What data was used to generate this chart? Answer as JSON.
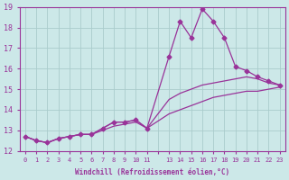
{
  "xlabel": "Windchill (Refroidissement éolien,°C)",
  "bg_color": "#cce8e8",
  "grid_color": "#aacccc",
  "line_color": "#993399",
  "x": [
    0,
    1,
    2,
    3,
    4,
    5,
    6,
    7,
    8,
    9,
    10,
    11,
    13,
    14,
    15,
    16,
    17,
    18,
    19,
    20,
    21,
    22,
    23
  ],
  "line1": [
    12.7,
    12.5,
    12.4,
    12.6,
    12.7,
    12.8,
    12.8,
    13.1,
    13.4,
    13.4,
    13.5,
    13.1,
    16.6,
    18.3,
    17.5,
    18.9,
    18.3,
    17.5,
    16.1,
    15.9,
    15.6,
    15.4,
    15.2
  ],
  "line2": [
    12.7,
    12.5,
    12.4,
    12.6,
    12.7,
    12.8,
    12.8,
    13.1,
    13.4,
    13.4,
    13.5,
    13.1,
    14.5,
    14.8,
    15.0,
    15.2,
    15.3,
    15.4,
    15.5,
    15.6,
    15.5,
    15.3,
    15.2
  ],
  "line3": [
    12.7,
    12.5,
    12.4,
    12.6,
    12.7,
    12.8,
    12.8,
    13.0,
    13.2,
    13.3,
    13.4,
    13.1,
    13.8,
    14.0,
    14.2,
    14.4,
    14.6,
    14.7,
    14.8,
    14.9,
    14.9,
    15.0,
    15.1
  ],
  "ylim": [
    12,
    19
  ],
  "yticks": [
    12,
    13,
    14,
    15,
    16,
    17,
    18,
    19
  ],
  "xticks": [
    0,
    1,
    2,
    3,
    4,
    5,
    6,
    7,
    8,
    9,
    10,
    11,
    12,
    13,
    14,
    15,
    16,
    17,
    18,
    19,
    20,
    21,
    22,
    23
  ],
  "xtick_labels": [
    "0",
    "1",
    "2",
    "3",
    "4",
    "5",
    "6",
    "7",
    "8",
    "9",
    "10",
    "11",
    "",
    "13",
    "14",
    "15",
    "16",
    "17",
    "18",
    "19",
    "20",
    "21",
    "22",
    "23"
  ]
}
